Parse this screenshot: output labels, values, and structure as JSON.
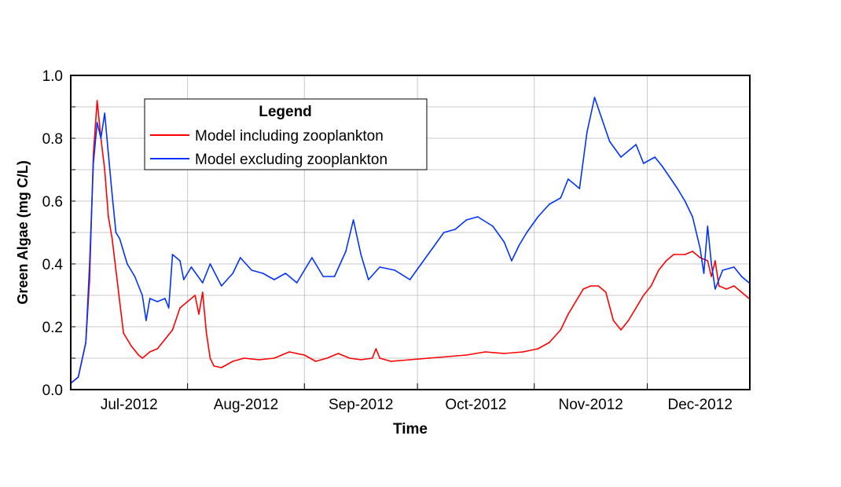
{
  "chart_data": {
    "type": "line",
    "title": "",
    "xlabel": "Time",
    "ylabel": "Green Algae (mg C/L)",
    "xlim": [
      "2012-07-01",
      "2012-12-28"
    ],
    "ylim": [
      0,
      1.0
    ],
    "yticks": [
      "0.0",
      "0.2",
      "0.4",
      "0.6",
      "0.8",
      "1.0"
    ],
    "xticks": [
      {
        "label": "Jul-2012",
        "start": "2012-07-01",
        "end": "2012-08-01"
      },
      {
        "label": "Aug-2012",
        "start": "2012-08-01",
        "end": "2012-09-01"
      },
      {
        "label": "Sep-2012",
        "start": "2012-09-01",
        "end": "2012-10-01"
      },
      {
        "label": "Oct-2012",
        "start": "2012-10-01",
        "end": "2012-11-01"
      },
      {
        "label": "Nov-2012",
        "start": "2012-11-01",
        "end": "2012-12-01"
      },
      {
        "label": "Dec-2012",
        "start": "2012-12-01",
        "end": "2012-12-28"
      }
    ],
    "grid": true,
    "legend": {
      "title": "Legend",
      "placement": "top-left"
    },
    "series": [
      {
        "name": "Model including zooplankton",
        "color": "#ff0000",
        "points": [
          [
            "2012-07-01",
            0.02
          ],
          [
            "2012-07-03",
            0.04
          ],
          [
            "2012-07-05",
            0.15
          ],
          [
            "2012-07-06",
            0.35
          ],
          [
            "2012-07-07",
            0.75
          ],
          [
            "2012-07-08",
            0.92
          ],
          [
            "2012-07-09",
            0.8
          ],
          [
            "2012-07-10",
            0.7
          ],
          [
            "2012-07-11",
            0.55
          ],
          [
            "2012-07-12",
            0.48
          ],
          [
            "2012-07-13",
            0.38
          ],
          [
            "2012-07-14",
            0.28
          ],
          [
            "2012-07-15",
            0.18
          ],
          [
            "2012-07-17",
            0.14
          ],
          [
            "2012-07-19",
            0.11
          ],
          [
            "2012-07-20",
            0.1
          ],
          [
            "2012-07-22",
            0.12
          ],
          [
            "2012-07-24",
            0.13
          ],
          [
            "2012-07-26",
            0.16
          ],
          [
            "2012-07-28",
            0.19
          ],
          [
            "2012-07-30",
            0.26
          ],
          [
            "2012-08-01",
            0.28
          ],
          [
            "2012-08-03",
            0.3
          ],
          [
            "2012-08-04",
            0.24
          ],
          [
            "2012-08-05",
            0.31
          ],
          [
            "2012-08-06",
            0.18
          ],
          [
            "2012-08-07",
            0.1
          ],
          [
            "2012-08-08",
            0.075
          ],
          [
            "2012-08-10",
            0.07
          ],
          [
            "2012-08-13",
            0.09
          ],
          [
            "2012-08-16",
            0.1
          ],
          [
            "2012-08-20",
            0.095
          ],
          [
            "2012-08-24",
            0.1
          ],
          [
            "2012-08-28",
            0.12
          ],
          [
            "2012-09-01",
            0.11
          ],
          [
            "2012-09-04",
            0.09
          ],
          [
            "2012-09-07",
            0.1
          ],
          [
            "2012-09-10",
            0.115
          ],
          [
            "2012-09-13",
            0.1
          ],
          [
            "2012-09-16",
            0.095
          ],
          [
            "2012-09-19",
            0.1
          ],
          [
            "2012-09-20",
            0.13
          ],
          [
            "2012-09-21",
            0.1
          ],
          [
            "2012-09-24",
            0.09
          ],
          [
            "2012-09-29",
            0.095
          ],
          [
            "2012-10-04",
            0.1
          ],
          [
            "2012-10-09",
            0.105
          ],
          [
            "2012-10-14",
            0.11
          ],
          [
            "2012-10-19",
            0.12
          ],
          [
            "2012-10-24",
            0.115
          ],
          [
            "2012-10-29",
            0.12
          ],
          [
            "2012-11-02",
            0.13
          ],
          [
            "2012-11-05",
            0.15
          ],
          [
            "2012-11-08",
            0.19
          ],
          [
            "2012-11-10",
            0.24
          ],
          [
            "2012-11-12",
            0.28
          ],
          [
            "2012-11-14",
            0.32
          ],
          [
            "2012-11-16",
            0.33
          ],
          [
            "2012-11-18",
            0.33
          ],
          [
            "2012-11-20",
            0.31
          ],
          [
            "2012-11-22",
            0.22
          ],
          [
            "2012-11-24",
            0.19
          ],
          [
            "2012-11-26",
            0.22
          ],
          [
            "2012-11-28",
            0.26
          ],
          [
            "2012-11-30",
            0.3
          ],
          [
            "2012-12-02",
            0.33
          ],
          [
            "2012-12-04",
            0.38
          ],
          [
            "2012-12-06",
            0.41
          ],
          [
            "2012-12-08",
            0.43
          ],
          [
            "2012-12-11",
            0.43
          ],
          [
            "2012-12-13",
            0.44
          ],
          [
            "2012-12-15",
            0.42
          ],
          [
            "2012-12-17",
            0.41
          ],
          [
            "2012-12-18",
            0.36
          ],
          [
            "2012-12-19",
            0.41
          ],
          [
            "2012-12-20",
            0.33
          ],
          [
            "2012-12-22",
            0.32
          ],
          [
            "2012-12-24",
            0.33
          ],
          [
            "2012-12-26",
            0.31
          ],
          [
            "2012-12-28",
            0.29
          ]
        ]
      },
      {
        "name": "Model excluding zooplankton",
        "color": "#0033ff",
        "points": [
          [
            "2012-07-01",
            0.02
          ],
          [
            "2012-07-03",
            0.04
          ],
          [
            "2012-07-05",
            0.15
          ],
          [
            "2012-07-06",
            0.4
          ],
          [
            "2012-07-07",
            0.72
          ],
          [
            "2012-07-08",
            0.85
          ],
          [
            "2012-07-09",
            0.8
          ],
          [
            "2012-07-10",
            0.88
          ],
          [
            "2012-07-11",
            0.75
          ],
          [
            "2012-07-12",
            0.62
          ],
          [
            "2012-07-13",
            0.5
          ],
          [
            "2012-07-14",
            0.48
          ],
          [
            "2012-07-15",
            0.44
          ],
          [
            "2012-07-16",
            0.4
          ],
          [
            "2012-07-18",
            0.36
          ],
          [
            "2012-07-20",
            0.3
          ],
          [
            "2012-07-21",
            0.22
          ],
          [
            "2012-07-22",
            0.29
          ],
          [
            "2012-07-24",
            0.28
          ],
          [
            "2012-07-26",
            0.29
          ],
          [
            "2012-07-27",
            0.26
          ],
          [
            "2012-07-28",
            0.43
          ],
          [
            "2012-07-30",
            0.41
          ],
          [
            "2012-07-31",
            0.35
          ],
          [
            "2012-08-02",
            0.39
          ],
          [
            "2012-08-05",
            0.34
          ],
          [
            "2012-08-07",
            0.4
          ],
          [
            "2012-08-10",
            0.33
          ],
          [
            "2012-08-13",
            0.37
          ],
          [
            "2012-08-15",
            0.42
          ],
          [
            "2012-08-18",
            0.38
          ],
          [
            "2012-08-21",
            0.37
          ],
          [
            "2012-08-24",
            0.35
          ],
          [
            "2012-08-27",
            0.37
          ],
          [
            "2012-08-30",
            0.34
          ],
          [
            "2012-09-03",
            0.42
          ],
          [
            "2012-09-06",
            0.36
          ],
          [
            "2012-09-09",
            0.36
          ],
          [
            "2012-09-12",
            0.44
          ],
          [
            "2012-09-14",
            0.54
          ],
          [
            "2012-09-16",
            0.43
          ],
          [
            "2012-09-18",
            0.35
          ],
          [
            "2012-09-21",
            0.39
          ],
          [
            "2012-09-25",
            0.38
          ],
          [
            "2012-09-29",
            0.35
          ],
          [
            "2012-10-02",
            0.4
          ],
          [
            "2012-10-05",
            0.45
          ],
          [
            "2012-10-08",
            0.5
          ],
          [
            "2012-10-11",
            0.51
          ],
          [
            "2012-10-14",
            0.54
          ],
          [
            "2012-10-17",
            0.55
          ],
          [
            "2012-10-21",
            0.52
          ],
          [
            "2012-10-24",
            0.47
          ],
          [
            "2012-10-26",
            0.41
          ],
          [
            "2012-10-28",
            0.46
          ],
          [
            "2012-10-30",
            0.5
          ],
          [
            "2012-11-02",
            0.55
          ],
          [
            "2012-11-05",
            0.59
          ],
          [
            "2012-11-08",
            0.61
          ],
          [
            "2012-11-10",
            0.67
          ],
          [
            "2012-11-13",
            0.64
          ],
          [
            "2012-11-15",
            0.82
          ],
          [
            "2012-11-17",
            0.93
          ],
          [
            "2012-11-19",
            0.86
          ],
          [
            "2012-11-21",
            0.79
          ],
          [
            "2012-11-24",
            0.74
          ],
          [
            "2012-11-28",
            0.78
          ],
          [
            "2012-11-30",
            0.72
          ],
          [
            "2012-12-03",
            0.74
          ],
          [
            "2012-12-05",
            0.71
          ],
          [
            "2012-12-09",
            0.64
          ],
          [
            "2012-12-11",
            0.6
          ],
          [
            "2012-12-13",
            0.55
          ],
          [
            "2012-12-15",
            0.45
          ],
          [
            "2012-12-16",
            0.37
          ],
          [
            "2012-12-17",
            0.52
          ],
          [
            "2012-12-18",
            0.4
          ],
          [
            "2012-12-19",
            0.32
          ],
          [
            "2012-12-21",
            0.38
          ],
          [
            "2012-12-24",
            0.39
          ],
          [
            "2012-12-26",
            0.36
          ],
          [
            "2012-12-28",
            0.34
          ]
        ]
      }
    ]
  }
}
